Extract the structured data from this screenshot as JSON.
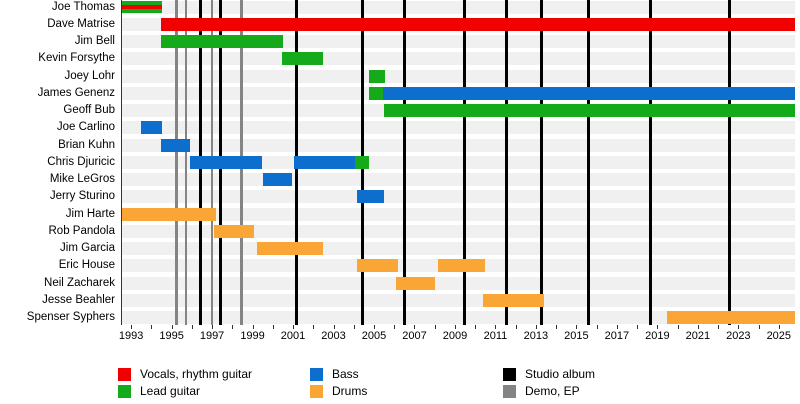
{
  "chart_data": {
    "type": "timeline",
    "description": "Band members timeline (gantt-style) with roles, studio albums and demo/EP release markers",
    "x_axis": {
      "start": 1992.5,
      "end": 2025.75,
      "tick_first": 1993,
      "tick_last": 2025,
      "tick_step": 1,
      "label_years": [
        1993,
        1995,
        1997,
        1999,
        2001,
        2003,
        2005,
        2007,
        2009,
        2011,
        2013,
        2015,
        2017,
        2019,
        2021,
        2023,
        2025
      ]
    },
    "colors": {
      "vocals": "#f10000",
      "lead": "#14aa19",
      "bass": "#0e6ecd",
      "drums": "#faa636",
      "album": "#000000",
      "demo": "#848484",
      "row_stripe": "#f0f0f0",
      "axis": "#333333"
    },
    "members": [
      {
        "name": "Joe Thomas",
        "segments": [
          {
            "start": 1992.5,
            "end": 1994.5,
            "stripes": [
              "lead",
              "vocals",
              "lead"
            ]
          }
        ]
      },
      {
        "name": "Dave Matrise",
        "segments": [
          {
            "start": 1994.45,
            "end": 2025.75,
            "role": "vocals"
          }
        ]
      },
      {
        "name": "Jim Bell",
        "segments": [
          {
            "start": 1994.45,
            "end": 2000.45,
            "role": "lead"
          }
        ]
      },
      {
        "name": "Kevin Forsythe",
        "segments": [
          {
            "start": 2000.4,
            "end": 2002.45,
            "role": "lead"
          }
        ]
      },
      {
        "name": "Joey Lohr",
        "segments": [
          {
            "start": 2004.7,
            "end": 2005.5,
            "role": "lead"
          }
        ]
      },
      {
        "name": "James Genenz",
        "segments": [
          {
            "start": 2004.7,
            "end": 2005.4,
            "role": "lead"
          },
          {
            "start": 2005.4,
            "end": 2025.75,
            "role": "bass"
          }
        ]
      },
      {
        "name": "Geoff Bub",
        "segments": [
          {
            "start": 2005.45,
            "end": 2025.75,
            "role": "lead"
          }
        ]
      },
      {
        "name": "Joe Carlino",
        "segments": [
          {
            "start": 1993.45,
            "end": 1994.5,
            "role": "bass"
          }
        ]
      },
      {
        "name": "Brian Kuhn",
        "segments": [
          {
            "start": 1994.45,
            "end": 1995.85,
            "role": "bass"
          }
        ]
      },
      {
        "name": "Chris Djuricic",
        "segments": [
          {
            "start": 1995.85,
            "end": 1999.4,
            "role": "bass"
          },
          {
            "start": 2001.0,
            "end": 2004.0,
            "role": "bass"
          },
          {
            "start": 2004.0,
            "end": 2004.7,
            "role": "lead"
          }
        ]
      },
      {
        "name": "Mike LeGros",
        "segments": [
          {
            "start": 1999.45,
            "end": 2000.9,
            "role": "bass"
          }
        ]
      },
      {
        "name": "Jerry Sturino",
        "segments": [
          {
            "start": 2004.1,
            "end": 2005.45,
            "role": "bass"
          }
        ]
      },
      {
        "name": "Jim Harte",
        "segments": [
          {
            "start": 1992.5,
            "end": 1997.15,
            "role": "drums"
          }
        ]
      },
      {
        "name": "Rob Pandola",
        "segments": [
          {
            "start": 1997.05,
            "end": 1999.0,
            "role": "drums"
          }
        ]
      },
      {
        "name": "Jim Garcia",
        "segments": [
          {
            "start": 1999.15,
            "end": 2002.45,
            "role": "drums"
          }
        ]
      },
      {
        "name": "Eric House",
        "segments": [
          {
            "start": 2004.1,
            "end": 2006.15,
            "role": "drums"
          },
          {
            "start": 2008.1,
            "end": 2010.45,
            "role": "drums"
          }
        ]
      },
      {
        "name": "Neil Zacharek",
        "segments": [
          {
            "start": 2006.05,
            "end": 2007.95,
            "role": "drums"
          }
        ]
      },
      {
        "name": "Jesse Beahler",
        "segments": [
          {
            "start": 2010.35,
            "end": 2013.35,
            "role": "drums"
          }
        ]
      },
      {
        "name": "Spenser Syphers",
        "segments": [
          {
            "start": 2019.45,
            "end": 2025.75,
            "role": "drums"
          }
        ]
      }
    ],
    "events": {
      "studio_albums": [
        1996.4,
        1997.35,
        2001.1,
        2004.4,
        2006.45,
        2009.4,
        2011.5,
        2013.25,
        2015.55,
        2018.6,
        2022.5
      ],
      "demos_eps": [
        1995.2,
        1995.65,
        1996.95,
        1998.4
      ]
    },
    "legend": [
      {
        "label": "Vocals, rhythm guitar",
        "color_key": "vocals",
        "col": 0,
        "row": 0
      },
      {
        "label": "Lead guitar",
        "color_key": "lead",
        "col": 0,
        "row": 1
      },
      {
        "label": "Bass",
        "color_key": "bass",
        "col": 1,
        "row": 0
      },
      {
        "label": "Drums",
        "color_key": "drums",
        "col": 1,
        "row": 1
      },
      {
        "label": "Studio album",
        "color_key": "album",
        "col": 2,
        "row": 0
      },
      {
        "label": "Demo, EP",
        "color_key": "demo",
        "col": 2,
        "row": 1
      }
    ]
  }
}
